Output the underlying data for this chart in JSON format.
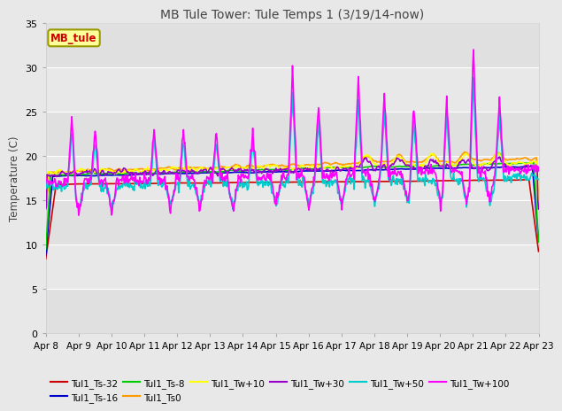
{
  "title": "MB Tule Tower: Tule Temps 1 (3/19/14-now)",
  "ylabel": "Temperature (C)",
  "ylim": [
    0,
    35
  ],
  "yticks": [
    0,
    5,
    10,
    15,
    20,
    25,
    30,
    35
  ],
  "n_days": 15,
  "xtick_labels": [
    "Apr 8",
    "Apr 9",
    "Apr 10",
    "Apr 11",
    "Apr 12",
    "Apr 13",
    "Apr 14",
    "Apr 15",
    "Apr 16",
    "Apr 17",
    "Apr 18",
    "Apr 19",
    "Apr 20",
    "Apr 21",
    "Apr 22",
    "Apr 23"
  ],
  "bg_color": "#e8e8e8",
  "band_colors": [
    "#e0e0e0",
    "#e8e8e8"
  ],
  "legend_box_label": "MB_tule",
  "legend_box_facecolor": "#ffff99",
  "legend_box_edgecolor": "#999900",
  "series": [
    {
      "label": "Tul1_Ts-32",
      "color": "#cc0000",
      "lw": 1.2
    },
    {
      "label": "Tul1_Ts-16",
      "color": "#0000cc",
      "lw": 1.2
    },
    {
      "label": "Tul1_Ts-8",
      "color": "#00cc00",
      "lw": 1.2
    },
    {
      "label": "Tul1_Ts0",
      "color": "#ff9900",
      "lw": 1.2
    },
    {
      "label": "Tul1_Tw+10",
      "color": "#ffff00",
      "lw": 1.2
    },
    {
      "label": "Tul1_Tw+30",
      "color": "#9900cc",
      "lw": 1.2
    },
    {
      "label": "Tul1_Tw+50",
      "color": "#00cccc",
      "lw": 1.2
    },
    {
      "label": "Tul1_Tw+100",
      "color": "#ff00ff",
      "lw": 1.2
    }
  ],
  "legend_row1": [
    "Tul1_Ts-32",
    "Tul1_Ts-16",
    "Tul1_Ts-8",
    "Tul1_Ts0",
    "Tul1_Tw+10",
    "Tul1_Tw+30"
  ],
  "legend_row2": [
    "Tul1_Tw+50",
    "Tul1_Tw+100"
  ]
}
